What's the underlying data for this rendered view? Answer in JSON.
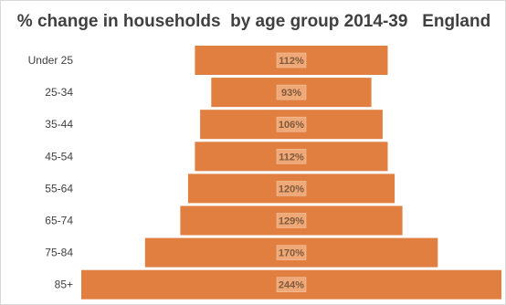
{
  "chart_data": {
    "type": "bar",
    "orientation": "horizontal-centered",
    "title": "% change in households  by age group 2014-39   England",
    "xlabel": "",
    "ylabel": "",
    "categories": [
      "Under 25",
      "25-34",
      "35-44",
      "45-54",
      "55-64",
      "65-74",
      "75-84",
      "85+"
    ],
    "values": [
      112,
      93,
      106,
      112,
      120,
      129,
      170,
      244
    ],
    "value_labels": [
      "112%",
      "93%",
      "106%",
      "112%",
      "120%",
      "129%",
      "170%",
      "244%"
    ],
    "value_unit": "%",
    "grid": false,
    "legend": "none",
    "bar_color": "#E07F3F",
    "bar_label_box_color": "#EFA878"
  }
}
